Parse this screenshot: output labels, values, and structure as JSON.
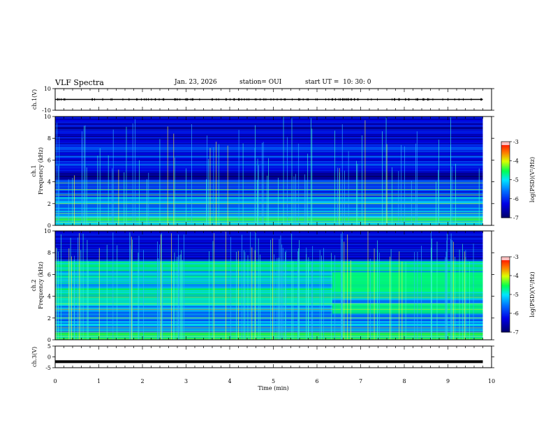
{
  "header": {
    "title": "VLF Spectra",
    "date": "Jan. 23, 2026",
    "station": "station= OUI",
    "start": "start UT =  10: 30: 0"
  },
  "colorbar": {
    "label": "log(PSD)(V²/Hz)",
    "ticks": [
      "-3",
      "-4",
      "-5",
      "-6",
      "-7"
    ],
    "colors": [
      "#000080",
      "#0000ff",
      "#0080ff",
      "#00ffff",
      "#00ff00",
      "#ffff00",
      "#ff8000",
      "#ff0000",
      "#ff8080",
      "#ffffff"
    ]
  },
  "chart_data": [
    {
      "type": "line",
      "panel": "ch1-voltage",
      "ylabel": "ch.1(V)",
      "ylim": [
        -10,
        10
      ],
      "yticks": [
        "10",
        "-10"
      ],
      "x": [
        0,
        1,
        2,
        3,
        4,
        5,
        6,
        7,
        8,
        9,
        9.8
      ],
      "values": [
        0,
        0,
        0,
        0,
        0,
        0,
        0,
        0,
        0,
        0,
        0
      ]
    },
    {
      "type": "heatmap",
      "panel": "ch1-spectrogram",
      "ylabel": "ch.1 Frequency (kHz)",
      "ylim": [
        0,
        10
      ],
      "yticks": [
        "0",
        "2",
        "4",
        "6",
        "8",
        "10"
      ],
      "xlim": [
        0,
        10
      ],
      "data_end_min": 9.8,
      "zlim": [
        -7,
        -3
      ]
    },
    {
      "type": "heatmap",
      "panel": "ch2-spectrogram",
      "ylabel": "ch.2 Frequency (kHz)",
      "ylim": [
        0,
        10
      ],
      "yticks": [
        "0",
        "2",
        "4",
        "6",
        "8",
        "10"
      ],
      "xlim": [
        0,
        10
      ],
      "data_end_min": 9.8,
      "zlim": [
        -7,
        -3
      ]
    },
    {
      "type": "line",
      "panel": "ch3-voltage",
      "ylabel": "ch.3(V)",
      "ylim": [
        -5,
        5
      ],
      "yticks": [
        "5",
        "0",
        "-5"
      ],
      "x": [
        0,
        1,
        2,
        3,
        4,
        5,
        6,
        7,
        8,
        9,
        9.8
      ],
      "values": [
        -2.2,
        -2.2,
        -2.2,
        -2.2,
        -2.2,
        -2.2,
        -2.2,
        -2.2,
        -2.2,
        -2.2,
        -2.2
      ]
    }
  ],
  "xaxis": {
    "label": "Time (min)",
    "xlim": [
      0,
      10
    ],
    "ticks": [
      "0",
      "1",
      "2",
      "3",
      "4",
      "5",
      "6",
      "7",
      "8",
      "9",
      "10"
    ]
  }
}
